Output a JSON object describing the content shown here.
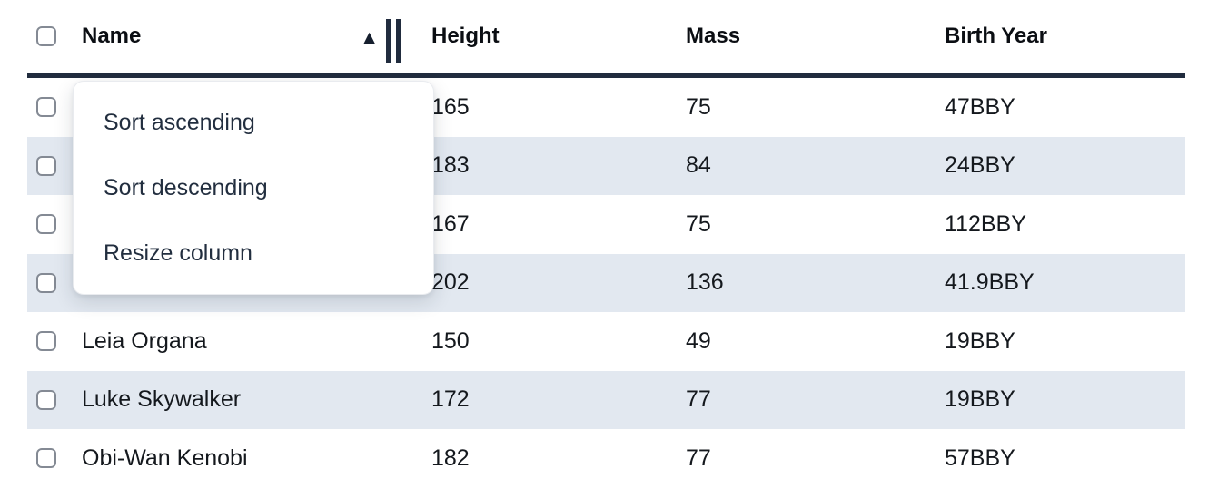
{
  "table": {
    "columns": [
      {
        "label": "Name"
      },
      {
        "label": "Height"
      },
      {
        "label": "Mass"
      },
      {
        "label": "Birth Year"
      }
    ],
    "sort": {
      "column": "Name",
      "direction": "ascending"
    },
    "rows": [
      {
        "name": "",
        "height": "165",
        "mass": "75",
        "birth_year": "47BBY"
      },
      {
        "name": "",
        "height": "183",
        "mass": "84",
        "birth_year": "24BBY"
      },
      {
        "name": "",
        "height": "167",
        "mass": "75",
        "birth_year": "112BBY"
      },
      {
        "name": "",
        "height": "202",
        "mass": "136",
        "birth_year": "41.9BBY"
      },
      {
        "name": "Leia Organa",
        "height": "150",
        "mass": "49",
        "birth_year": "19BBY"
      },
      {
        "name": "Luke Skywalker",
        "height": "172",
        "mass": "77",
        "birth_year": "19BBY"
      },
      {
        "name": "Obi-Wan Kenobi",
        "height": "182",
        "mass": "77",
        "birth_year": "57BBY"
      }
    ]
  },
  "menu": {
    "items": [
      {
        "label": "Sort ascending"
      },
      {
        "label": "Sort descending"
      },
      {
        "label": "Resize column"
      }
    ]
  },
  "icons": {
    "sort_ascending": "▲"
  },
  "colors": {
    "stripe": "#e2e8f0",
    "header_border": "#212c3e",
    "menu_text": "#222e3f",
    "checkbox_border": "#848a94"
  }
}
